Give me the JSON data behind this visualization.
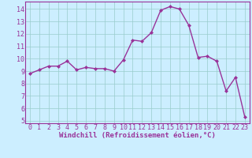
{
  "x": [
    0,
    1,
    2,
    3,
    4,
    5,
    6,
    7,
    8,
    9,
    10,
    11,
    12,
    13,
    14,
    15,
    16,
    17,
    18,
    19,
    20,
    21,
    22,
    23
  ],
  "y": [
    8.8,
    9.1,
    9.4,
    9.4,
    9.8,
    9.1,
    9.3,
    9.2,
    9.2,
    9.0,
    9.9,
    11.5,
    11.4,
    12.1,
    13.9,
    14.2,
    14.0,
    12.7,
    10.1,
    10.2,
    9.8,
    7.4,
    8.5,
    5.3
  ],
  "line_color": "#993399",
  "marker": "D",
  "marker_size": 2,
  "linewidth": 1.0,
  "xlabel": "Windchill (Refroidissement éolien,°C)",
  "xlabel_fontsize": 6.5,
  "xlim": [
    -0.5,
    23.5
  ],
  "ylim": [
    4.8,
    14.6
  ],
  "yticks": [
    5,
    6,
    7,
    8,
    9,
    10,
    11,
    12,
    13,
    14
  ],
  "xticks": [
    0,
    1,
    2,
    3,
    4,
    5,
    6,
    7,
    8,
    9,
    10,
    11,
    12,
    13,
    14,
    15,
    16,
    17,
    18,
    19,
    20,
    21,
    22,
    23
  ],
  "bg_color": "#cceeff",
  "grid_color": "#99cccc",
  "tick_fontsize": 6.0,
  "spine_color": "#993399"
}
